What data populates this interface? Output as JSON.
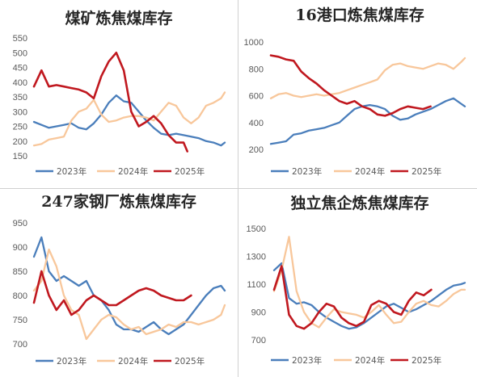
{
  "chart_data": [
    {
      "type": "line",
      "title": "煤矿炼焦煤库存",
      "yticks": [
        150,
        200,
        250,
        300,
        350,
        400,
        450,
        500,
        550
      ],
      "ylim": [
        150,
        550
      ],
      "xlim": [
        1,
        52
      ],
      "grid": false,
      "legend": "bottom",
      "series": [
        {
          "name": "2023年",
          "color": "#4a7ebb",
          "x": [
            1,
            3,
            5,
            7,
            9,
            11,
            13,
            15,
            17,
            19,
            21,
            23,
            25,
            27,
            29,
            31,
            33,
            35,
            37,
            39,
            41,
            43,
            45,
            47,
            49,
            51,
            52
          ],
          "y": [
            265,
            255,
            245,
            250,
            255,
            260,
            245,
            240,
            260,
            290,
            330,
            355,
            335,
            330,
            300,
            270,
            245,
            225,
            220,
            225,
            220,
            215,
            210,
            200,
            195,
            185,
            195
          ]
        },
        {
          "name": "2024年",
          "color": "#f8c79b",
          "x": [
            1,
            3,
            5,
            7,
            9,
            11,
            13,
            15,
            17,
            19,
            21,
            23,
            25,
            27,
            29,
            31,
            33,
            35,
            37,
            39,
            41,
            43,
            45,
            47,
            49,
            51,
            52
          ],
          "y": [
            185,
            190,
            205,
            210,
            215,
            270,
            300,
            310,
            340,
            290,
            265,
            270,
            280,
            285,
            285,
            280,
            270,
            300,
            330,
            320,
            280,
            260,
            280,
            320,
            330,
            345,
            365
          ]
        },
        {
          "name": "2025年",
          "color": "#c0181f",
          "x": [
            1,
            3,
            5,
            7,
            9,
            11,
            13,
            15,
            17,
            19,
            21,
            23,
            25,
            27,
            29,
            31,
            33,
            35,
            37,
            39,
            41,
            42
          ],
          "y": [
            385,
            440,
            385,
            390,
            385,
            380,
            375,
            365,
            345,
            420,
            470,
            500,
            440,
            300,
            250,
            265,
            285,
            260,
            220,
            195,
            195,
            165
          ]
        }
      ]
    },
    {
      "type": "line",
      "title": "16港口炼焦煤库存",
      "yticks": [
        200,
        400,
        600,
        800,
        1000
      ],
      "ylim": [
        200,
        1000
      ],
      "xlim": [
        1,
        52
      ],
      "grid": false,
      "legend": "bottom",
      "series": [
        {
          "name": "2023年",
          "color": "#4a7ebb",
          "x": [
            1,
            3,
            5,
            7,
            9,
            11,
            13,
            15,
            17,
            19,
            21,
            23,
            25,
            27,
            29,
            31,
            33,
            35,
            37,
            39,
            41,
            43,
            45,
            47,
            49,
            51,
            52
          ],
          "y": [
            240,
            250,
            260,
            310,
            320,
            340,
            350,
            360,
            380,
            400,
            450,
            500,
            520,
            530,
            520,
            500,
            450,
            420,
            430,
            460,
            480,
            500,
            530,
            560,
            580,
            540,
            520
          ]
        },
        {
          "name": "2024年",
          "color": "#f8c79b",
          "x": [
            1,
            3,
            5,
            7,
            9,
            11,
            13,
            15,
            17,
            19,
            21,
            23,
            25,
            27,
            29,
            31,
            33,
            35,
            37,
            39,
            41,
            43,
            45,
            47,
            49,
            51,
            52
          ],
          "y": [
            580,
            610,
            620,
            600,
            590,
            600,
            610,
            600,
            610,
            620,
            640,
            660,
            680,
            700,
            720,
            790,
            830,
            840,
            820,
            810,
            800,
            820,
            840,
            830,
            800,
            850,
            880
          ]
        },
        {
          "name": "2025年",
          "color": "#c0181f",
          "x": [
            1,
            3,
            5,
            7,
            9,
            11,
            13,
            15,
            17,
            19,
            21,
            23,
            25,
            27,
            29,
            31,
            33,
            35,
            37,
            39,
            41,
            43
          ],
          "y": [
            900,
            890,
            870,
            860,
            780,
            730,
            690,
            640,
            600,
            560,
            540,
            560,
            520,
            500,
            460,
            450,
            470,
            500,
            520,
            510,
            500,
            520
          ]
        }
      ]
    },
    {
      "type": "line",
      "title": "247家钢厂炼焦煤库存",
      "yticks": [
        700,
        750,
        800,
        850,
        900,
        950
      ],
      "ylim": [
        700,
        950
      ],
      "xlim": [
        1,
        52
      ],
      "grid": false,
      "legend": "bottom",
      "series": [
        {
          "name": "2023年",
          "color": "#4a7ebb",
          "x": [
            1,
            3,
            5,
            7,
            9,
            11,
            13,
            15,
            17,
            19,
            21,
            23,
            25,
            27,
            29,
            31,
            33,
            35,
            37,
            39,
            41,
            43,
            45,
            47,
            49,
            51,
            52
          ],
          "y": [
            880,
            920,
            850,
            830,
            840,
            830,
            820,
            830,
            800,
            790,
            770,
            740,
            730,
            730,
            725,
            735,
            745,
            730,
            720,
            730,
            740,
            760,
            780,
            800,
            815,
            820,
            810
          ]
        },
        {
          "name": "2024年",
          "color": "#f8c79b",
          "x": [
            1,
            3,
            5,
            7,
            9,
            11,
            13,
            15,
            17,
            19,
            21,
            23,
            25,
            27,
            29,
            31,
            33,
            35,
            37,
            39,
            41,
            43,
            45,
            47,
            49,
            51,
            52
          ],
          "y": [
            810,
            830,
            895,
            860,
            800,
            770,
            760,
            710,
            730,
            750,
            760,
            755,
            740,
            730,
            735,
            720,
            725,
            730,
            740,
            735,
            745,
            745,
            740,
            745,
            750,
            760,
            780
          ]
        },
        {
          "name": "2025年",
          "color": "#c0181f",
          "x": [
            1,
            3,
            5,
            7,
            9,
            11,
            13,
            15,
            17,
            19,
            21,
            23,
            25,
            27,
            29,
            31,
            33,
            35,
            37,
            39,
            41,
            43
          ],
          "y": [
            785,
            850,
            800,
            770,
            790,
            760,
            770,
            790,
            800,
            790,
            780,
            780,
            790,
            800,
            810,
            815,
            810,
            800,
            795,
            790,
            790,
            800
          ]
        }
      ]
    },
    {
      "type": "line",
      "title": "独立焦企炼焦煤库存",
      "yticks": [
        700,
        900,
        1100,
        1300,
        1500
      ],
      "ylim": [
        700,
        1500
      ],
      "xlim": [
        1,
        52
      ],
      "grid": false,
      "legend": "bottom",
      "series": [
        {
          "name": "2023年",
          "color": "#4a7ebb",
          "x": [
            1,
            3,
            5,
            7,
            9,
            11,
            13,
            15,
            17,
            19,
            21,
            23,
            25,
            27,
            29,
            31,
            33,
            35,
            37,
            39,
            41,
            43,
            45,
            47,
            49,
            51,
            52
          ],
          "y": [
            1200,
            1250,
            1000,
            960,
            970,
            950,
            900,
            860,
            830,
            800,
            780,
            790,
            820,
            860,
            900,
            940,
            960,
            930,
            900,
            920,
            950,
            980,
            1020,
            1060,
            1090,
            1100,
            1110
          ]
        },
        {
          "name": "2024年",
          "color": "#f8c79b",
          "x": [
            1,
            3,
            5,
            7,
            9,
            11,
            13,
            15,
            17,
            19,
            21,
            23,
            25,
            27,
            29,
            31,
            33,
            35,
            37,
            39,
            41,
            43,
            45,
            47,
            49,
            51,
            52
          ],
          "y": [
            1050,
            1200,
            1440,
            1050,
            900,
            820,
            790,
            860,
            920,
            900,
            890,
            880,
            860,
            900,
            950,
            880,
            820,
            830,
            900,
            960,
            980,
            950,
            940,
            980,
            1030,
            1060,
            1060
          ]
        },
        {
          "name": "2025年",
          "color": "#c0181f",
          "x": [
            1,
            3,
            5,
            7,
            9,
            11,
            13,
            15,
            17,
            19,
            21,
            23,
            25,
            27,
            29,
            31,
            33,
            35,
            37,
            39,
            41,
            43
          ],
          "y": [
            1060,
            1230,
            880,
            800,
            780,
            820,
            900,
            960,
            940,
            860,
            820,
            800,
            830,
            950,
            980,
            960,
            900,
            880,
            980,
            1040,
            1020,
            1060
          ]
        }
      ]
    }
  ]
}
